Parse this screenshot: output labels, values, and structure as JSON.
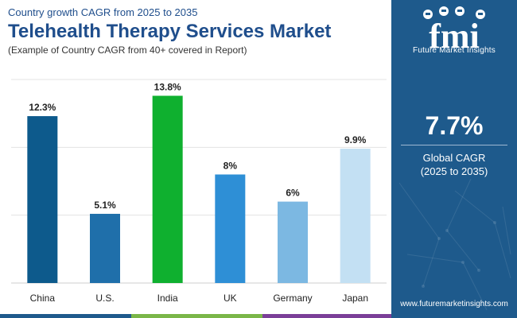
{
  "header": {
    "subtitle": "Country growth CAGR from 2025 to 2035",
    "title": "Telehealth Therapy Services Market",
    "note": "(Example of Country CAGR from 40+ covered in Report)"
  },
  "chart_data": {
    "type": "bar",
    "categories": [
      "China",
      "U.S.",
      "India",
      "UK",
      "Germany",
      "Japan"
    ],
    "values": [
      12.3,
      5.1,
      13.8,
      8,
      6,
      9.9
    ],
    "value_labels": [
      "12.3%",
      "5.1%",
      "13.8%",
      "8%",
      "6%",
      "9.9%"
    ],
    "colors": [
      "#0d5a8c",
      "#1f6faa",
      "#0fb02f",
      "#2e8fd6",
      "#7cb8e2",
      "#c3e0f3"
    ],
    "ylim": [
      0,
      15
    ],
    "grid": true,
    "title": "",
    "xlabel": "",
    "ylabel": ""
  },
  "bottom_bar_colors": [
    "#1e5a8c",
    "#7ab648",
    "#7b3f98",
    "#1e5a8c"
  ],
  "panel": {
    "logo_text": "fmi",
    "logo_subtitle": "Future Market Insights",
    "cagr_value": "7.7%",
    "cagr_label_line1": "Global CAGR",
    "cagr_label_line2": "(2025 to 2035)",
    "website": "www.futuremarketinsights.com",
    "background": "#1e5a8c"
  }
}
